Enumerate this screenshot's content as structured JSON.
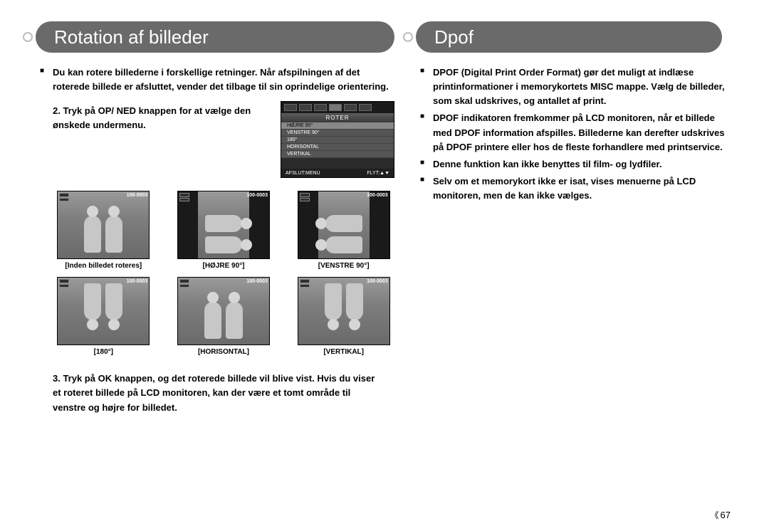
{
  "page_number": "67",
  "left": {
    "title": "Rotation af billeder",
    "intro": "Du kan rotere billederne i forskellige retninger. Når afspilningen af det roterede billede er afsluttet, vender det tilbage til sin oprindelige orientering.",
    "step2": "2. Tryk på OP/ NED knappen for at vælge den ønskede undermenu.",
    "step3": "3. Tryk på OK knappen, og det roterede billede vil blive vist. Hvis du viser et roteret billede på LCD monitoren, kan der være et tomt område til venstre og højre for billedet.",
    "menu": {
      "title": "ROTER",
      "rows": [
        "HØJRE 90°",
        "VENSTRE 90°",
        "180°",
        "HORISONTAL",
        "VERTIKAL"
      ],
      "bottom_left": "AFSLUT:MENU",
      "bottom_right": "FLYT:▲▼"
    },
    "thumbs": [
      {
        "id": "100-0003",
        "caption": "[Inden billedet roteres]"
      },
      {
        "id": "100-0003",
        "caption": "[HØJRE 90°]"
      },
      {
        "id": "100-0003",
        "caption": "[VENSTRE 90°]"
      },
      {
        "id": "100-0003",
        "caption": "[180°]"
      },
      {
        "id": "100-0003",
        "caption": "[HORISONTAL]"
      },
      {
        "id": "100-0003",
        "caption": "[VERTIKAL]"
      }
    ]
  },
  "right": {
    "title": "Dpof",
    "bullets": [
      "DPOF (Digital Print Order Format) gør det muligt at indlæse printinformationer i memorykortets MISC mappe. Vælg de billeder, som skal udskrives, og antallet af print.",
      "DPOF indikatoren fremkommer på LCD monitoren, når et billede med DPOF information afspilles. Billederne kan derefter udskrives på DPOF printere eller hos de fleste forhandlere med printservice.",
      "Denne funktion kan ikke benyttes til film- og lydfiler.",
      "Selv om et memorykort ikke er isat, vises menuerne på LCD monitoren, men de kan ikke vælges."
    ]
  },
  "colors": {
    "pill_bg": "#6a6a6a",
    "pill_text": "#ffffff",
    "body_text": "#000000",
    "screen_bg": "#2a2a2a"
  }
}
